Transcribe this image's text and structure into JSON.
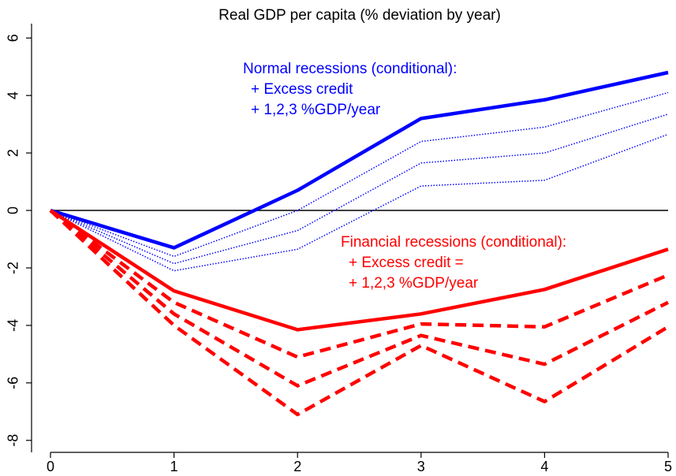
{
  "chart_data": {
    "type": "line",
    "title": "Real GDP per capita (% deviation by year)",
    "x": [
      0,
      1,
      2,
      3,
      4,
      5
    ],
    "xlim": [
      0,
      5
    ],
    "xticks": [
      0,
      1,
      2,
      3,
      4,
      5
    ],
    "ylim": [
      -8.5,
      6.5
    ],
    "yticks": [
      -8,
      -6,
      -4,
      -2,
      0,
      2,
      4,
      6
    ],
    "reference_line": 0,
    "series": [
      {
        "color": "#0000ff",
        "style": "solid",
        "values": [
          0,
          -1.3,
          0.7,
          3.2,
          3.85,
          4.8
        ]
      },
      {
        "color": "#0000ff",
        "style": "dotted",
        "values": [
          0,
          -1.6,
          0.0,
          2.4,
          2.9,
          4.1
        ]
      },
      {
        "color": "#0000ff",
        "style": "dotted",
        "values": [
          0,
          -1.85,
          -0.7,
          1.65,
          2.0,
          3.35
        ]
      },
      {
        "color": "#0000ff",
        "style": "dotted",
        "values": [
          0,
          -2.1,
          -1.35,
          0.85,
          1.05,
          2.65
        ]
      },
      {
        "color": "#ff0000",
        "style": "solid",
        "values": [
          0,
          -2.8,
          -4.15,
          -3.6,
          -2.75,
          -1.35
        ]
      },
      {
        "color": "#ff0000",
        "style": "dashed",
        "values": [
          0,
          -3.2,
          -5.1,
          -3.95,
          -4.05,
          -2.25
        ]
      },
      {
        "color": "#ff0000",
        "style": "dashed",
        "values": [
          0,
          -3.6,
          -6.1,
          -4.35,
          -5.35,
          -3.2
        ]
      },
      {
        "color": "#ff0000",
        "style": "dashed",
        "values": [
          0,
          -4.0,
          -7.1,
          -4.7,
          -6.65,
          -4.05
        ]
      }
    ],
    "annotations": [
      {
        "color": "#0000ff",
        "lines": [
          "Normal recessions (conditional):",
          "+ Excess credit",
          "+ 1,2,3 %GDP/year"
        ]
      },
      {
        "color": "#ff0000",
        "lines": [
          "Financial recessions (conditional):",
          "+ Excess credit =",
          "+ 1,2,3 %GDP/year"
        ]
      }
    ]
  }
}
